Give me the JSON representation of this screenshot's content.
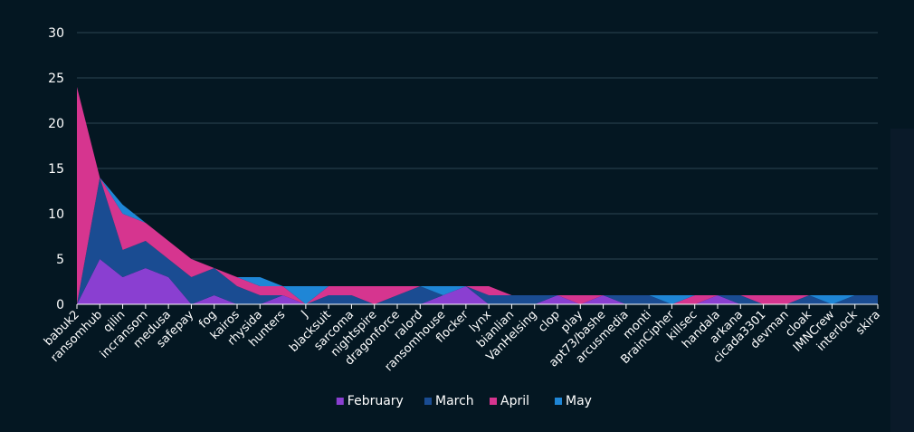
{
  "chart_data": {
    "type": "area",
    "stacked": true,
    "categories": [
      "babuk2",
      "ransomhub",
      "qilin",
      "incransom",
      "medusa",
      "safepay",
      "fog",
      "kairos",
      "rhysida",
      "hunters",
      "J",
      "blacksuit",
      "sarcoma",
      "nightspire",
      "dragonforce",
      "ralord",
      "ransomhouse",
      "flocker",
      "lynx",
      "bianlian",
      "VanHelsing",
      "clop",
      "play",
      "apt73/bashe",
      "arcusmedia",
      "monti",
      "BrainCipher",
      "killsec",
      "handala",
      "arkana",
      "cicada3301",
      "devman",
      "cloak",
      "IMNCrew",
      "interlock",
      "skira"
    ],
    "series": [
      {
        "name": "February",
        "color": "#8a3fd1",
        "values": [
          0,
          5,
          3,
          4,
          3,
          0,
          1,
          0,
          0,
          1,
          0,
          0,
          0,
          0,
          0,
          0,
          1,
          2,
          0,
          0,
          0,
          1,
          0,
          1,
          0,
          0,
          0,
          0,
          1,
          0,
          0,
          0,
          0,
          0,
          0,
          0
        ]
      },
      {
        "name": "March",
        "color": "#1a4c92",
        "values": [
          0,
          9,
          3,
          3,
          2,
          3,
          3,
          2,
          1,
          0,
          0,
          1,
          1,
          0,
          1,
          2,
          0,
          0,
          1,
          1,
          1,
          0,
          0,
          0,
          1,
          1,
          0,
          0,
          0,
          1,
          0,
          0,
          1,
          0,
          1,
          1
        ]
      },
      {
        "name": "April",
        "color": "#d6358f",
        "values": [
          24,
          0,
          4,
          2,
          2,
          2,
          0,
          1,
          1,
          1,
          0,
          1,
          1,
          2,
          1,
          0,
          0,
          0,
          1,
          0,
          0,
          0,
          1,
          0,
          0,
          0,
          0,
          1,
          0,
          0,
          1,
          1,
          0,
          0,
          0,
          0
        ]
      },
      {
        "name": "May",
        "color": "#1f86d6",
        "values": [
          0,
          0,
          1,
          0,
          0,
          0,
          0,
          0,
          1,
          0,
          2,
          0,
          0,
          0,
          0,
          0,
          1,
          0,
          0,
          0,
          0,
          0,
          0,
          0,
          0,
          0,
          1,
          0,
          0,
          0,
          0,
          0,
          0,
          1,
          0,
          0
        ]
      }
    ],
    "ylim": [
      0,
      30
    ],
    "yticks": [
      0,
      5,
      10,
      15,
      20,
      25,
      30
    ],
    "grid": true,
    "legend_position": "bottom-center",
    "title": "",
    "xlabel": "",
    "ylabel": ""
  }
}
